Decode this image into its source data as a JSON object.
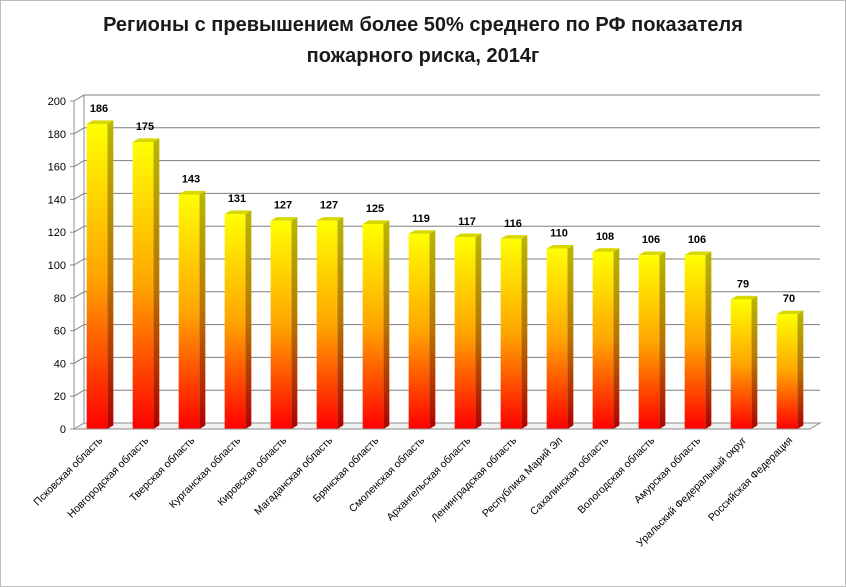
{
  "chart_data": {
    "type": "bar",
    "title": "Регионы с превышением более 50% среднего по РФ показателя пожарного риска, 2014г",
    "title_lines": [
      "Регионы с превышением более 50% среднего по РФ показателя",
      "пожарного риска, 2014г"
    ],
    "categories": [
      "Псковская область",
      "Новгородская область",
      "Тверская область",
      "Курганская область",
      "Кировская область",
      "Магаданская область",
      "Брянская область",
      "Смоленская область",
      "Архангельская область",
      "Ленинградская область",
      "Республика Марий Эл",
      "Сахалинская область",
      "Вологодская область",
      "Амурская область",
      "Уральский Федеральный округ",
      "Российская Федерация"
    ],
    "values": [
      186,
      175,
      143,
      131,
      127,
      127,
      125,
      119,
      117,
      116,
      110,
      108,
      106,
      106,
      79,
      70
    ],
    "ylim": [
      0,
      200
    ],
    "yticks": [
      0,
      20,
      40,
      60,
      80,
      100,
      120,
      140,
      160,
      180,
      200
    ],
    "xlabel": "",
    "ylabel": "",
    "grid": true,
    "legend": "none",
    "colors": {
      "bar_top": "#ffff00",
      "bar_bottom": "#ff0000",
      "grid": "#7f7f7f"
    }
  }
}
